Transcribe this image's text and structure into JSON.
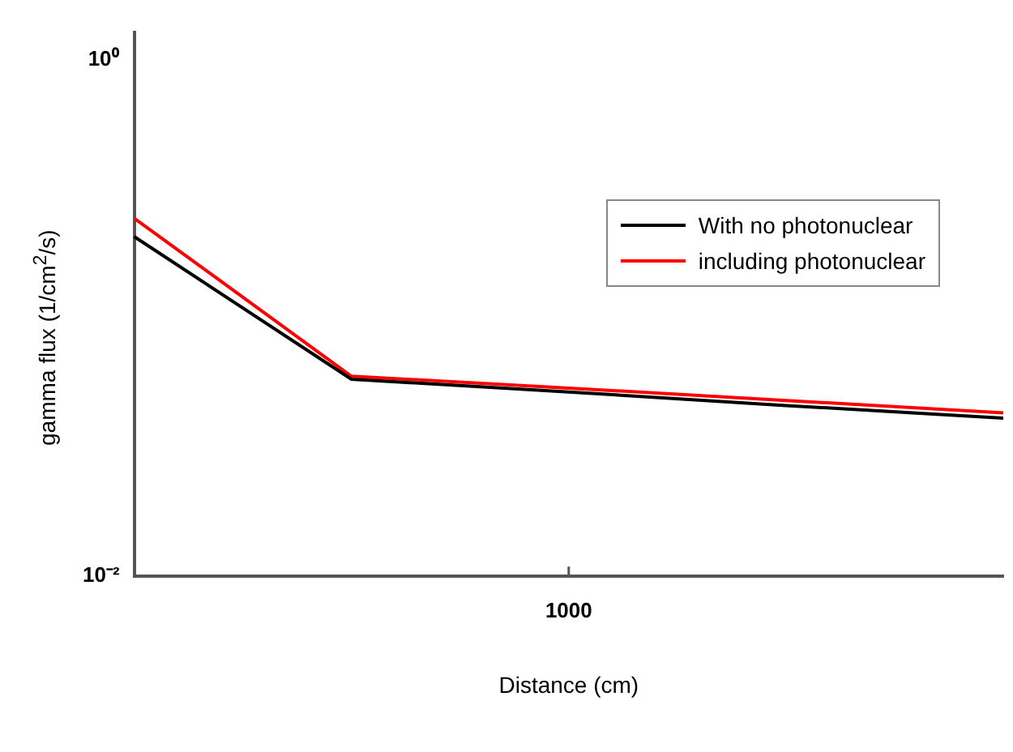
{
  "chart_data": {
    "type": "line",
    "xlabel": "Distance (cm)",
    "ylabel": "gamma flux (1/cm$^{2}$/s)",
    "categories": [
      null,
      null,
      "1000",
      null,
      null
    ],
    "log": "y",
    "ylim": [
      0.01,
      1.28
    ],
    "yticks": [
      {
        "value": 0.01,
        "label": "10⁻²"
      },
      {
        "value": 1,
        "label": "10⁰"
      }
    ],
    "series": [
      {
        "name": "With no photonuclear",
        "color": "#000000",
        "values": [
          0.207,
          0.058,
          0.0518,
          0.0459,
          0.041
        ]
      },
      {
        "name": "including photonuclear",
        "color": "#ff0000",
        "values": [
          0.244,
          0.0596,
          0.0536,
          0.048,
          0.043
        ]
      }
    ],
    "legend": "top right",
    "grid": false,
    "marker": "none",
    "line_style": "solid"
  }
}
